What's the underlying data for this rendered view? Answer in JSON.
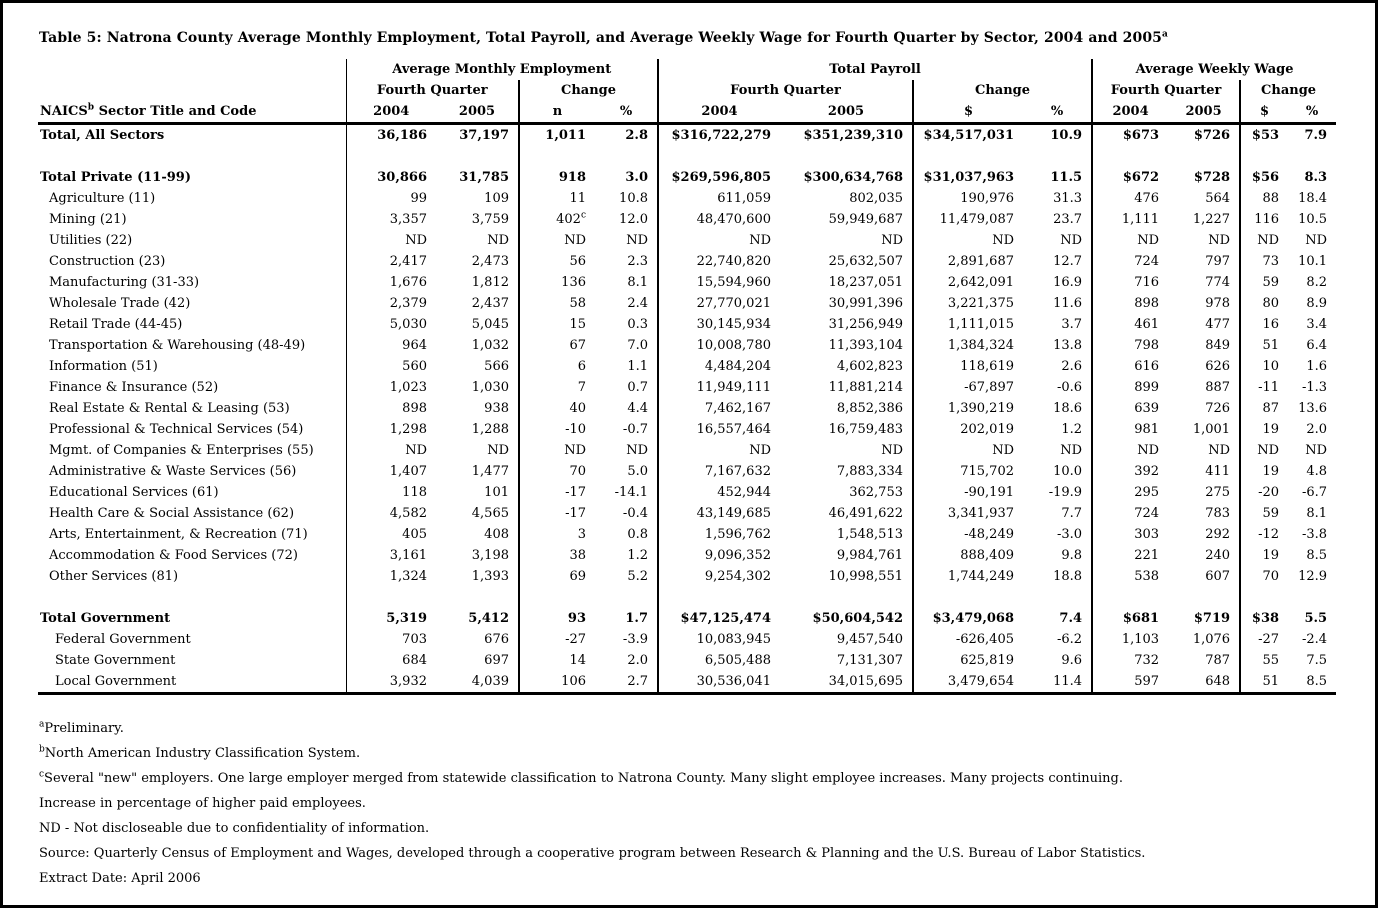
{
  "page": {
    "title": "Table 5: Natrona County Average Monthly Employment, Total Payroll, and Average Weekly Wage for Fourth Quarter by Sector, 2004 and 2005",
    "title_sup": "a"
  },
  "header": {
    "stub_label_main": "NAICS",
    "stub_label_sup": "b",
    "stub_label_rest": " Sector Title and Code",
    "groups": [
      {
        "label": "Average Monthly Employment",
        "subgroups": [
          {
            "label": "Fourth Quarter",
            "cols": [
              "2004",
              "2005"
            ]
          },
          {
            "label": "Change",
            "cols": [
              "n",
              "%"
            ]
          }
        ]
      },
      {
        "label": "Total Payroll",
        "subgroups": [
          {
            "label": "Fourth Quarter",
            "cols": [
              "2004",
              "2005"
            ]
          },
          {
            "label": "Change",
            "cols": [
              "$",
              "%"
            ]
          }
        ]
      },
      {
        "label": "Average Weekly Wage",
        "subgroups": [
          {
            "label": "Fourth Quarter",
            "cols": [
              "2004",
              "2005"
            ]
          },
          {
            "label": "Change",
            "cols": [
              "$",
              "%"
            ]
          }
        ]
      }
    ]
  },
  "rows": [
    {
      "label": "Total, All Sectors",
      "style": "total",
      "cells": [
        "36,186",
        "37,197",
        "1,011",
        "2.8",
        "$316,722,279",
        "$351,239,310",
        "$34,517,031",
        "10.9",
        "$673",
        "$726",
        "$53",
        "7.9"
      ]
    },
    {
      "style": "spacer",
      "label": "",
      "cells": [
        "",
        "",
        "",
        "",
        "",
        "",
        "",
        "",
        "",
        "",
        "",
        ""
      ]
    },
    {
      "label": "Total Private (11-99)",
      "style": "total",
      "cells": [
        "30,866",
        "31,785",
        "918",
        "3.0",
        "$269,596,805",
        "$300,634,768",
        "$31,037,963",
        "11.5",
        "$672",
        "$728",
        "$56",
        "8.3"
      ]
    },
    {
      "label": "Agriculture (11)",
      "style": "sector",
      "cells": [
        "99",
        "109",
        "11",
        "10.8",
        "611,059",
        "802,035",
        "190,976",
        "31.3",
        "476",
        "564",
        "88",
        "18.4"
      ]
    },
    {
      "label": "Mining (21)",
      "style": "sector",
      "cells": [
        "3,357",
        "3,759",
        "402",
        "12.0",
        "48,470,600",
        "59,949,687",
        "11,479,087",
        "23.7",
        "1,111",
        "1,227",
        "116",
        "10.5"
      ],
      "cell_sups": {
        "2": "c"
      }
    },
    {
      "label": "Utilities (22)",
      "style": "sector",
      "cells": [
        "ND",
        "ND",
        "ND",
        "ND",
        "ND",
        "ND",
        "ND",
        "ND",
        "ND",
        "ND",
        "ND",
        "ND"
      ]
    },
    {
      "label": "Construction (23)",
      "style": "sector",
      "cells": [
        "2,417",
        "2,473",
        "56",
        "2.3",
        "22,740,820",
        "25,632,507",
        "2,891,687",
        "12.7",
        "724",
        "797",
        "73",
        "10.1"
      ]
    },
    {
      "label": "Manufacturing (31-33)",
      "style": "sector",
      "cells": [
        "1,676",
        "1,812",
        "136",
        "8.1",
        "15,594,960",
        "18,237,051",
        "2,642,091",
        "16.9",
        "716",
        "774",
        "59",
        "8.2"
      ]
    },
    {
      "label": "Wholesale Trade (42)",
      "style": "sector",
      "cells": [
        "2,379",
        "2,437",
        "58",
        "2.4",
        "27,770,021",
        "30,991,396",
        "3,221,375",
        "11.6",
        "898",
        "978",
        "80",
        "8.9"
      ]
    },
    {
      "label": "Retail Trade (44-45)",
      "style": "sector",
      "cells": [
        "5,030",
        "5,045",
        "15",
        "0.3",
        "30,145,934",
        "31,256,949",
        "1,111,015",
        "3.7",
        "461",
        "477",
        "16",
        "3.4"
      ]
    },
    {
      "label": "Transportation & Warehousing (48-49)",
      "style": "sector",
      "cells": [
        "964",
        "1,032",
        "67",
        "7.0",
        "10,008,780",
        "11,393,104",
        "1,384,324",
        "13.8",
        "798",
        "849",
        "51",
        "6.4"
      ]
    },
    {
      "label": "Information (51)",
      "style": "sector",
      "cells": [
        "560",
        "566",
        "6",
        "1.1",
        "4,484,204",
        "4,602,823",
        "118,619",
        "2.6",
        "616",
        "626",
        "10",
        "1.6"
      ]
    },
    {
      "label": "Finance & Insurance (52)",
      "style": "sector",
      "cells": [
        "1,023",
        "1,030",
        "7",
        "0.7",
        "11,949,111",
        "11,881,214",
        "-67,897",
        "-0.6",
        "899",
        "887",
        "-11",
        "-1.3"
      ]
    },
    {
      "label": "Real Estate & Rental & Leasing (53)",
      "style": "sector",
      "cells": [
        "898",
        "938",
        "40",
        "4.4",
        "7,462,167",
        "8,852,386",
        "1,390,219",
        "18.6",
        "639",
        "726",
        "87",
        "13.6"
      ]
    },
    {
      "label": "Professional & Technical Services (54)",
      "style": "sector",
      "cells": [
        "1,298",
        "1,288",
        "-10",
        "-0.7",
        "16,557,464",
        "16,759,483",
        "202,019",
        "1.2",
        "981",
        "1,001",
        "19",
        "2.0"
      ]
    },
    {
      "label": "Mgmt. of Companies & Enterprises (55)",
      "style": "sector",
      "cells": [
        "ND",
        "ND",
        "ND",
        "ND",
        "ND",
        "ND",
        "ND",
        "ND",
        "ND",
        "ND",
        "ND",
        "ND"
      ]
    },
    {
      "label": "Administrative & Waste Services (56)",
      "style": "sector",
      "cells": [
        "1,407",
        "1,477",
        "70",
        "5.0",
        "7,167,632",
        "7,883,334",
        "715,702",
        "10.0",
        "392",
        "411",
        "19",
        "4.8"
      ]
    },
    {
      "label": "Educational Services (61)",
      "style": "sector",
      "cells": [
        "118",
        "101",
        "-17",
        "-14.1",
        "452,944",
        "362,753",
        "-90,191",
        "-19.9",
        "295",
        "275",
        "-20",
        "-6.7"
      ]
    },
    {
      "label": "Health Care & Social Assistance (62)",
      "style": "sector",
      "cells": [
        "4,582",
        "4,565",
        "-17",
        "-0.4",
        "43,149,685",
        "46,491,622",
        "3,341,937",
        "7.7",
        "724",
        "783",
        "59",
        "8.1"
      ]
    },
    {
      "label": "Arts, Entertainment, & Recreation (71)",
      "style": "sector",
      "cells": [
        "405",
        "408",
        "3",
        "0.8",
        "1,596,762",
        "1,548,513",
        "-48,249",
        "-3.0",
        "303",
        "292",
        "-12",
        "-3.8"
      ]
    },
    {
      "label": "Accommodation & Food Services (72)",
      "style": "sector",
      "cells": [
        "3,161",
        "3,198",
        "38",
        "1.2",
        "9,096,352",
        "9,984,761",
        "888,409",
        "9.8",
        "221",
        "240",
        "19",
        "8.5"
      ]
    },
    {
      "label": "Other Services (81)",
      "style": "sector",
      "cells": [
        "1,324",
        "1,393",
        "69",
        "5.2",
        "9,254,302",
        "10,998,551",
        "1,744,249",
        "18.8",
        "538",
        "607",
        "70",
        "12.9"
      ]
    },
    {
      "style": "spacer",
      "label": "",
      "cells": [
        "",
        "",
        "",
        "",
        "",
        "",
        "",
        "",
        "",
        "",
        "",
        ""
      ]
    },
    {
      "label": "Total Government",
      "style": "total",
      "cells": [
        "5,319",
        "5,412",
        "93",
        "1.7",
        "$47,125,474",
        "$50,604,542",
        "$3,479,068",
        "7.4",
        "$681",
        "$719",
        "$38",
        "5.5"
      ]
    },
    {
      "label": "Federal Government",
      "style": "gov",
      "cells": [
        "703",
        "676",
        "-27",
        "-3.9",
        "10,083,945",
        "9,457,540",
        "-626,405",
        "-6.2",
        "1,103",
        "1,076",
        "-27",
        "-2.4"
      ]
    },
    {
      "label": "State Government",
      "style": "gov",
      "cells": [
        "684",
        "697",
        "14",
        "2.0",
        "6,505,488",
        "7,131,307",
        "625,819",
        "9.6",
        "732",
        "787",
        "55",
        "7.5"
      ]
    },
    {
      "label": "Local Government",
      "style": "gov",
      "cells": [
        "3,932",
        "4,039",
        "106",
        "2.7",
        "30,536,041",
        "34,015,695",
        "3,479,654",
        "11.4",
        "597",
        "648",
        "51",
        "8.5"
      ]
    }
  ],
  "footnotes": [
    {
      "sup": "a",
      "text": "Preliminary."
    },
    {
      "sup": "b",
      "text": "North American Industry Classification System."
    },
    {
      "sup": "c",
      "text": "Several \"new\" employers. One large employer merged from statewide classification to Natrona County. Many slight employee increases. Many projects continuing."
    },
    {
      "sup": "",
      "text": "Increase in percentage of higher paid employees."
    },
    {
      "sup": "",
      "text": "ND - Not discloseable due to confidentiality of information."
    },
    {
      "sup": "",
      "text": "Source: Quarterly Census of Employment and Wages, developed through a cooperative program between Research & Planning and the U.S. Bureau of Labor Statistics."
    },
    {
      "sup": "",
      "text": "Extract Date: April 2006"
    }
  ]
}
